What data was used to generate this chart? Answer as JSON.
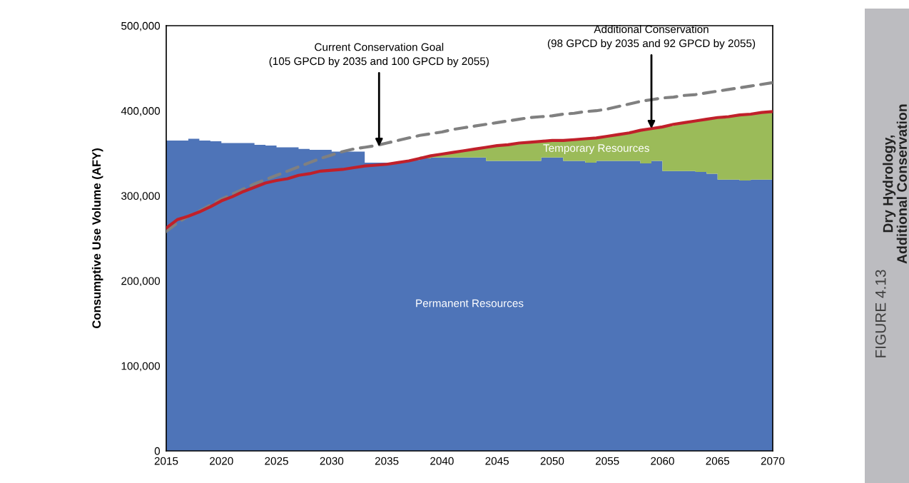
{
  "chart_data": {
    "type": "area",
    "stacked": true,
    "ylabel": "Consumptive Use Volume (AFY)",
    "xlim": [
      2015,
      2070
    ],
    "xticks": [
      2015,
      2020,
      2025,
      2030,
      2035,
      2040,
      2045,
      2050,
      2055,
      2060,
      2065,
      2070
    ],
    "ylim": [
      0,
      500000
    ],
    "yticks": [
      0,
      {
        "value": 100000,
        "label": "100,000"
      },
      {
        "value": 200000,
        "label": "200,000"
      },
      {
        "value": 300000,
        "label": "300,000"
      },
      {
        "value": 400000,
        "label": "400,000"
      },
      {
        "value": 500000,
        "label": "500,000"
      }
    ],
    "grid": false,
    "legend": false,
    "series": [
      {
        "name": "Permanent Resources",
        "color": "#4e74b8",
        "x": [
          2015,
          2016,
          2017,
          2018,
          2019,
          2020,
          2021,
          2022,
          2023,
          2024,
          2025,
          2026,
          2027,
          2028,
          2029,
          2030,
          2031,
          2032,
          2033,
          2034,
          2035,
          2036,
          2037,
          2038,
          2039,
          2040,
          2041,
          2042,
          2043,
          2044,
          2045,
          2046,
          2047,
          2048,
          2049,
          2050,
          2051,
          2052,
          2053,
          2054,
          2055,
          2056,
          2057,
          2058,
          2059,
          2060,
          2061,
          2062,
          2063,
          2064,
          2065,
          2066,
          2067,
          2068,
          2069,
          2070
        ],
        "values": [
          365000,
          365000,
          367000,
          365000,
          364000,
          362000,
          362000,
          362000,
          360000,
          359000,
          357000,
          357000,
          355000,
          354000,
          354000,
          352000,
          352000,
          352000,
          339000,
          339000,
          339000,
          340000,
          342000,
          344000,
          345000,
          345000,
          345000,
          345000,
          345000,
          341000,
          341000,
          341000,
          341000,
          341000,
          345000,
          345000,
          341000,
          341000,
          339000,
          341000,
          341000,
          341000,
          341000,
          338000,
          341000,
          329000,
          329000,
          329000,
          328000,
          326000,
          319000,
          319000,
          318000,
          319000,
          319000,
          319000
        ]
      },
      {
        "name": "Temporary Resources",
        "color": "#9bbb59",
        "x": [
          2015,
          2016,
          2017,
          2018,
          2019,
          2020,
          2021,
          2022,
          2023,
          2024,
          2025,
          2026,
          2027,
          2028,
          2029,
          2030,
          2031,
          2032,
          2033,
          2034,
          2035,
          2036,
          2037,
          2038,
          2039,
          2040,
          2041,
          2042,
          2043,
          2044,
          2045,
          2046,
          2047,
          2048,
          2049,
          2050,
          2051,
          2052,
          2053,
          2054,
          2055,
          2056,
          2057,
          2058,
          2059,
          2060,
          2061,
          2062,
          2063,
          2064,
          2065,
          2066,
          2067,
          2068,
          2069,
          2070
        ],
        "values": [
          0,
          0,
          0,
          0,
          0,
          0,
          0,
          0,
          0,
          0,
          0,
          0,
          0,
          0,
          0,
          0,
          0,
          0,
          0,
          0,
          0,
          0,
          0,
          2000,
          3000,
          5000,
          7000,
          9000,
          11000,
          17000,
          18000,
          20000,
          22000,
          22000,
          20000,
          20000,
          24000,
          26000,
          28000,
          28000,
          30000,
          32000,
          35000,
          40000,
          39000,
          53000,
          56000,
          58000,
          61000,
          65000,
          74000,
          75000,
          78000,
          78000,
          80000,
          80000
        ]
      },
      {
        "type": "line",
        "color": "#808080",
        "line_style": "dashed",
        "x": [
          2015,
          2016,
          2017,
          2018,
          2019,
          2020,
          2021,
          2022,
          2023,
          2024,
          2025,
          2026,
          2027,
          2028,
          2029,
          2030,
          2031,
          2032,
          2033,
          2034,
          2035,
          2036,
          2037,
          2038,
          2039,
          2040,
          2041,
          2042,
          2043,
          2044,
          2045,
          2046,
          2047,
          2048,
          2049,
          2050,
          2051,
          2052,
          2053,
          2054,
          2055,
          2056,
          2057,
          2058,
          2059,
          2060,
          2061,
          2062,
          2063,
          2064,
          2065,
          2066,
          2067,
          2068,
          2069,
          2070
        ],
        "values": [
          258000,
          268000,
          276000,
          282000,
          289000,
          296000,
          302000,
          308000,
          314000,
          319000,
          324000,
          329000,
          334000,
          339000,
          344000,
          348000,
          352000,
          355000,
          357000,
          359000,
          362000,
          365000,
          368000,
          371000,
          373000,
          375000,
          378000,
          380000,
          382000,
          384000,
          386000,
          388000,
          390000,
          392000,
          393000,
          394000,
          396000,
          397000,
          399000,
          400000,
          402000,
          405000,
          408000,
          411000,
          413000,
          415000,
          416000,
          418000,
          419000,
          421000,
          423000,
          425000,
          427000,
          429000,
          431000,
          433000
        ]
      },
      {
        "type": "line",
        "color": "#c0202a",
        "line_style": "solid",
        "x": [
          2015,
          2016,
          2017,
          2018,
          2019,
          2020,
          2021,
          2022,
          2023,
          2024,
          2025,
          2026,
          2027,
          2028,
          2029,
          2030,
          2031,
          2032,
          2033,
          2034,
          2035,
          2036,
          2037,
          2038,
          2039,
          2040,
          2041,
          2042,
          2043,
          2044,
          2045,
          2046,
          2047,
          2048,
          2049,
          2050,
          2051,
          2052,
          2053,
          2054,
          2055,
          2056,
          2057,
          2058,
          2059,
          2060,
          2061,
          2062,
          2063,
          2064,
          2065,
          2066,
          2067,
          2068,
          2069,
          2070
        ],
        "values": [
          262000,
          272000,
          276000,
          281000,
          287000,
          294000,
          299000,
          305000,
          310000,
          315000,
          318000,
          320000,
          324000,
          326000,
          329000,
          330000,
          331000,
          333000,
          335000,
          336000,
          337000,
          339000,
          341000,
          344000,
          347000,
          349000,
          351000,
          353000,
          355000,
          357000,
          359000,
          360000,
          362000,
          363000,
          364000,
          365000,
          365000,
          366000,
          367000,
          368000,
          370000,
          372000,
          374000,
          377000,
          379000,
          381000,
          384000,
          386000,
          388000,
          390000,
          392000,
          393000,
          395000,
          396000,
          398000,
          399000
        ]
      }
    ],
    "annotations": [
      {
        "text": "Current Conservation Goal\n(105 GPCD by 2035 and 100 GPCD by 2055)",
        "x": 2034.3,
        "y": 358000
      },
      {
        "text": "Additional Conservation\n(98 GPCD by 2035 and 92 GPCD by 2055)",
        "x": 2059,
        "y": 379000
      },
      "FIGURE 4.13",
      "Dry Hydrology,\nAdditional Conservation"
    ]
  }
}
